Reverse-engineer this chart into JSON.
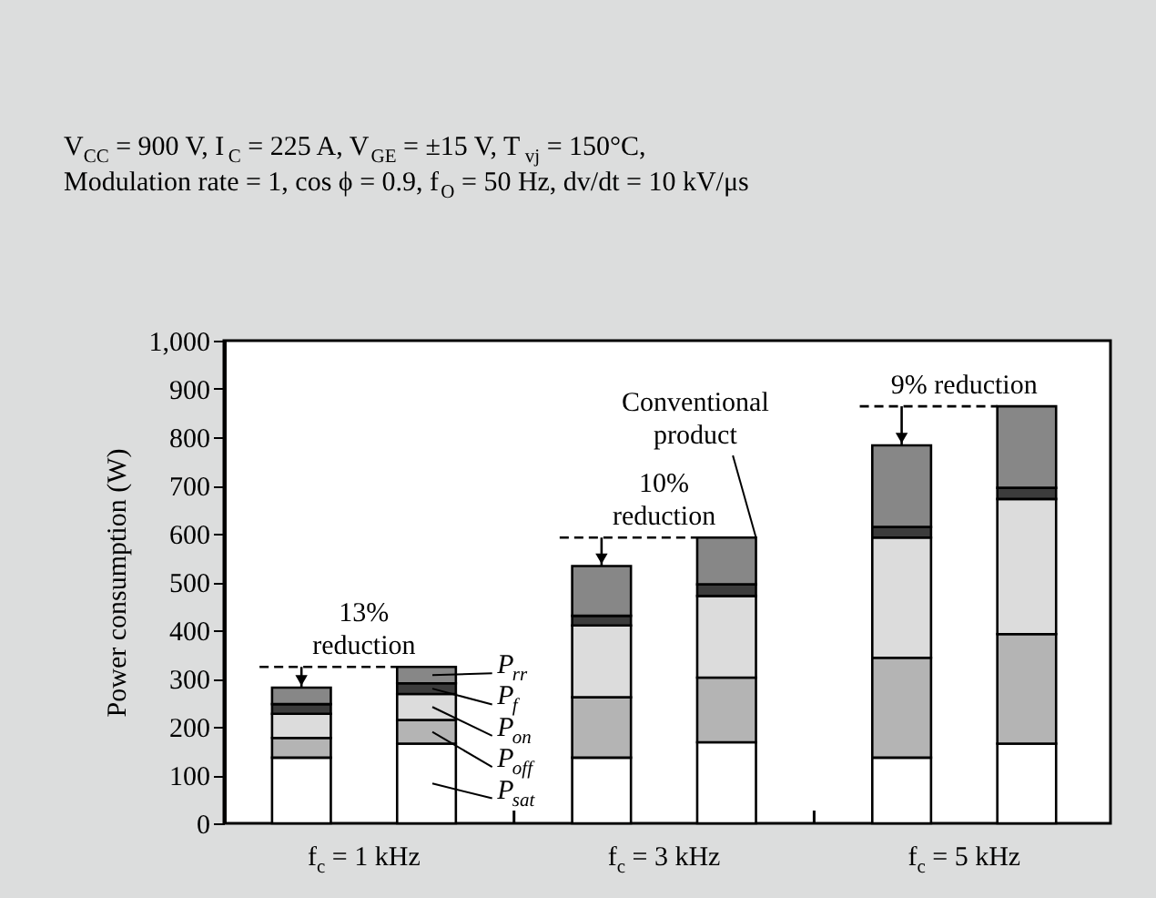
{
  "chart_data": {
    "type": "bar",
    "stacked": true,
    "title": "V$_{CC}$ = 900 V, I$_{C}$ = 225 A, V$_{GE}$ = ±15 V, T$_{vj}$ = 150°C,",
    "subtitle": "Modulation rate = 1, cos ϕ = 0.9, f$_{O}$ = 50 Hz, dv/dt = 10 kV/μs",
    "ylabel": "Power consumption (W)",
    "categories": [
      null,
      null,
      null,
      null,
      null,
      null
    ],
    "series": [
      {
        "name": "P$_{sat}$",
        "color": "#ffffff",
        "values": [
          136,
          165,
          136,
          168,
          136,
          165
        ]
      },
      {
        "name": "P$_{off}$",
        "color": "#b4b4b4",
        "values": [
          41,
          49,
          125,
          134,
          207,
          227
        ]
      },
      {
        "name": "P$_{on}$",
        "color": "#dcdcdc",
        "values": [
          50,
          54,
          149,
          169,
          249,
          280
        ]
      },
      {
        "name": "P$_{f}$",
        "color": "#3c3c3c",
        "values": [
          20,
          22,
          20,
          24,
          22,
          23
        ]
      },
      {
        "name": "P$_{rr}$",
        "color": "#878787",
        "values": [
          34,
          34,
          103,
          97,
          169,
          169
        ]
      }
    ],
    "legend": "bottom left",
    "ylim": [
      0,
      1000
    ],
    "yticks": [
      0,
      100,
      200,
      300,
      400,
      500,
      600,
      700,
      800,
      900,
      {
        "value": 1000,
        "label": "1,000"
      }
    ],
    "annotations": [
      "13%\nreduction",
      "10%\nreduction",
      "9% reduction",
      "Conventional\nproduct",
      "f$_{c}$ = 1 kHz",
      "f$_{c}$ = 3 kHz",
      "f$_{c}$ = 5 kHz"
    ]
  }
}
